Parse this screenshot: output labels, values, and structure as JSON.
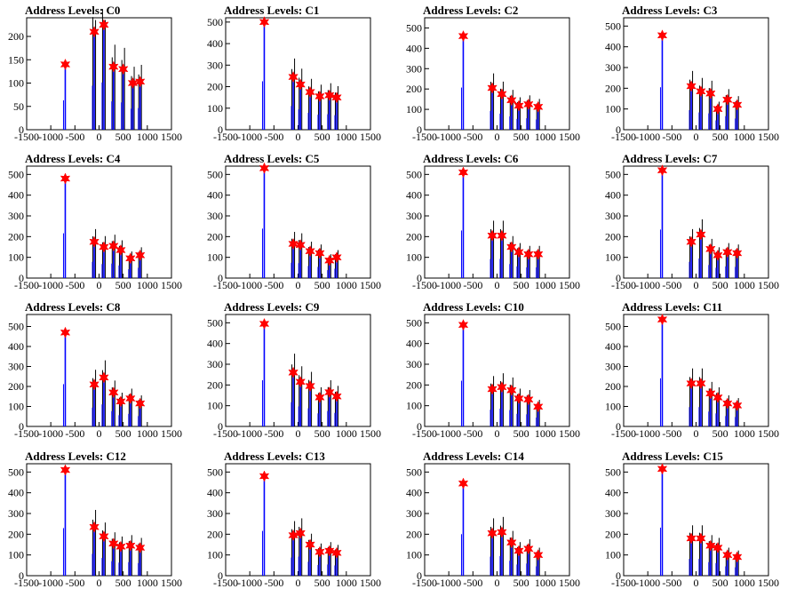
{
  "figure": {
    "title_prefix": "Address Levels: "
  },
  "colors": {
    "histogram": "#0000ff",
    "background_spike": "#000000",
    "peak_marker": "#ff0000",
    "axis": "#000000"
  },
  "chart_data": [
    {
      "type": "bar",
      "title": "Address Levels: C0",
      "xlim": [
        -1500,
        1500
      ],
      "ylim": [
        0,
        240
      ],
      "yticks": [
        0,
        50,
        100,
        150,
        200
      ],
      "xticks": [
        -1500,
        -1000,
        -500,
        0,
        500,
        1000,
        1500
      ],
      "peaks": [
        {
          "x": -700,
          "y": 140
        },
        {
          "x": -100,
          "y": 210
        },
        {
          "x": 100,
          "y": 225
        },
        {
          "x": 300,
          "y": 135
        },
        {
          "x": 500,
          "y": 130
        },
        {
          "x": 700,
          "y": 100
        },
        {
          "x": 850,
          "y": 103
        }
      ]
    },
    {
      "type": "bar",
      "title": "Address Levels: C1",
      "xlim": [
        -1500,
        1500
      ],
      "ylim": [
        0,
        520
      ],
      "yticks": [
        0,
        100,
        200,
        300,
        400,
        500
      ],
      "xticks": [
        -1500,
        -1000,
        -500,
        0,
        500,
        1000,
        1500
      ],
      "peaks": [
        {
          "x": -700,
          "y": 500
        },
        {
          "x": -100,
          "y": 245
        },
        {
          "x": 50,
          "y": 210
        },
        {
          "x": 250,
          "y": 175
        },
        {
          "x": 450,
          "y": 155
        },
        {
          "x": 650,
          "y": 160
        },
        {
          "x": 800,
          "y": 150
        }
      ]
    },
    {
      "type": "bar",
      "title": "Address Levels: C2",
      "xlim": [
        -1500,
        1500
      ],
      "ylim": [
        0,
        550
      ],
      "yticks": [
        0,
        100,
        200,
        300,
        400,
        500
      ],
      "xticks": [
        -1500,
        -1000,
        -500,
        0,
        500,
        1000,
        1500
      ],
      "peaks": [
        {
          "x": -700,
          "y": 460
        },
        {
          "x": -100,
          "y": 205
        },
        {
          "x": 100,
          "y": 175
        },
        {
          "x": 300,
          "y": 145
        },
        {
          "x": 450,
          "y": 118
        },
        {
          "x": 650,
          "y": 125
        },
        {
          "x": 850,
          "y": 112
        }
      ]
    },
    {
      "type": "bar",
      "title": "Address Levels: C3",
      "xlim": [
        -1500,
        1500
      ],
      "ylim": [
        0,
        540
      ],
      "yticks": [
        0,
        100,
        200,
        300,
        400,
        500
      ],
      "xticks": [
        -1500,
        -1000,
        -500,
        0,
        500,
        1000,
        1500
      ],
      "peaks": [
        {
          "x": -700,
          "y": 455
        },
        {
          "x": -100,
          "y": 210
        },
        {
          "x": 100,
          "y": 185
        },
        {
          "x": 300,
          "y": 175
        },
        {
          "x": 450,
          "y": 100
        },
        {
          "x": 650,
          "y": 145
        },
        {
          "x": 850,
          "y": 120
        }
      ]
    },
    {
      "type": "bar",
      "title": "Address Levels: C4",
      "xlim": [
        -1500,
        1500
      ],
      "ylim": [
        0,
        540
      ],
      "yticks": [
        0,
        100,
        200,
        300,
        400,
        500
      ],
      "xticks": [
        -1500,
        -1000,
        -500,
        0,
        500,
        1000,
        1500
      ],
      "peaks": [
        {
          "x": -700,
          "y": 480
        },
        {
          "x": -100,
          "y": 175
        },
        {
          "x": 100,
          "y": 150
        },
        {
          "x": 300,
          "y": 155
        },
        {
          "x": 450,
          "y": 135
        },
        {
          "x": 650,
          "y": 95
        },
        {
          "x": 850,
          "y": 110
        }
      ]
    },
    {
      "type": "bar",
      "title": "Address Levels: C5",
      "xlim": [
        -1500,
        1500
      ],
      "ylim": [
        0,
        540
      ],
      "yticks": [
        0,
        100,
        200,
        300,
        400,
        500
      ],
      "xticks": [
        -1500,
        -1000,
        -500,
        0,
        500,
        1000,
        1500
      ],
      "peaks": [
        {
          "x": -700,
          "y": 530
        },
        {
          "x": -100,
          "y": 165
        },
        {
          "x": 50,
          "y": 160
        },
        {
          "x": 250,
          "y": 130
        },
        {
          "x": 450,
          "y": 120
        },
        {
          "x": 650,
          "y": 85
        },
        {
          "x": 800,
          "y": 100
        }
      ]
    },
    {
      "type": "bar",
      "title": "Address Levels: C6",
      "xlim": [
        -1500,
        1500
      ],
      "ylim": [
        0,
        540
      ],
      "yticks": [
        0,
        100,
        200,
        300,
        400,
        500
      ],
      "xticks": [
        -1500,
        -1000,
        -500,
        0,
        500,
        1000,
        1500
      ],
      "peaks": [
        {
          "x": -700,
          "y": 510
        },
        {
          "x": -100,
          "y": 205
        },
        {
          "x": 100,
          "y": 205
        },
        {
          "x": 300,
          "y": 150
        },
        {
          "x": 450,
          "y": 125
        },
        {
          "x": 650,
          "y": 115
        },
        {
          "x": 850,
          "y": 115
        }
      ]
    },
    {
      "type": "bar",
      "title": "Address Levels: C7",
      "xlim": [
        -1500,
        1500
      ],
      "ylim": [
        0,
        540
      ],
      "yticks": [
        0,
        100,
        200,
        300,
        400,
        500
      ],
      "xticks": [
        -1500,
        -1000,
        -500,
        0,
        500,
        1000,
        1500
      ],
      "peaks": [
        {
          "x": -700,
          "y": 520
        },
        {
          "x": -100,
          "y": 175
        },
        {
          "x": 100,
          "y": 210
        },
        {
          "x": 300,
          "y": 140
        },
        {
          "x": 450,
          "y": 110
        },
        {
          "x": 650,
          "y": 125
        },
        {
          "x": 850,
          "y": 120
        }
      ]
    },
    {
      "type": "bar",
      "title": "Address Levels: C8",
      "xlim": [
        -1500,
        1500
      ],
      "ylim": [
        0,
        560
      ],
      "yticks": [
        0,
        100,
        200,
        300,
        400,
        500
      ],
      "xticks": [
        -1500,
        -1000,
        -500,
        0,
        500,
        1000,
        1500
      ],
      "peaks": [
        {
          "x": -700,
          "y": 470
        },
        {
          "x": -100,
          "y": 210
        },
        {
          "x": 100,
          "y": 245
        },
        {
          "x": 300,
          "y": 170
        },
        {
          "x": 450,
          "y": 125
        },
        {
          "x": 650,
          "y": 140
        },
        {
          "x": 850,
          "y": 115
        }
      ]
    },
    {
      "type": "bar",
      "title": "Address Levels: C9",
      "xlim": [
        -1500,
        1500
      ],
      "ylim": [
        0,
        540
      ],
      "yticks": [
        0,
        100,
        200,
        300,
        400,
        500
      ],
      "xticks": [
        -1500,
        -1000,
        -500,
        0,
        500,
        1000,
        1500
      ],
      "peaks": [
        {
          "x": -700,
          "y": 495
        },
        {
          "x": -100,
          "y": 260
        },
        {
          "x": 50,
          "y": 215
        },
        {
          "x": 250,
          "y": 195
        },
        {
          "x": 450,
          "y": 140
        },
        {
          "x": 650,
          "y": 165
        },
        {
          "x": 800,
          "y": 145
        }
      ]
    },
    {
      "type": "bar",
      "title": "Address Levels: C10",
      "xlim": [
        -1500,
        1500
      ],
      "ylim": [
        0,
        540
      ],
      "yticks": [
        0,
        100,
        200,
        300,
        400,
        500
      ],
      "xticks": [
        -1500,
        -1000,
        -500,
        0,
        500,
        1000,
        1500
      ],
      "peaks": [
        {
          "x": -700,
          "y": 490
        },
        {
          "x": -100,
          "y": 180
        },
        {
          "x": 100,
          "y": 190
        },
        {
          "x": 300,
          "y": 175
        },
        {
          "x": 450,
          "y": 135
        },
        {
          "x": 650,
          "y": 130
        },
        {
          "x": 850,
          "y": 95
        }
      ]
    },
    {
      "type": "bar",
      "title": "Address Levels: C11",
      "xlim": [
        -1500,
        1500
      ],
      "ylim": [
        0,
        560
      ],
      "yticks": [
        0,
        100,
        200,
        300,
        400,
        500
      ],
      "xticks": [
        -1500,
        -1000,
        -500,
        0,
        500,
        1000,
        1500
      ],
      "peaks": [
        {
          "x": -700,
          "y": 535
        },
        {
          "x": -100,
          "y": 215
        },
        {
          "x": 100,
          "y": 215
        },
        {
          "x": 300,
          "y": 165
        },
        {
          "x": 450,
          "y": 145
        },
        {
          "x": 650,
          "y": 115
        },
        {
          "x": 850,
          "y": 105
        }
      ]
    },
    {
      "type": "bar",
      "title": "Address Levels: C12",
      "xlim": [
        -1500,
        1500
      ],
      "ylim": [
        0,
        540
      ],
      "yticks": [
        0,
        100,
        200,
        300,
        400,
        500
      ],
      "xticks": [
        -1500,
        -1000,
        -500,
        0,
        500,
        1000,
        1500
      ],
      "peaks": [
        {
          "x": -700,
          "y": 510
        },
        {
          "x": -100,
          "y": 235
        },
        {
          "x": 100,
          "y": 190
        },
        {
          "x": 300,
          "y": 155
        },
        {
          "x": 450,
          "y": 140
        },
        {
          "x": 650,
          "y": 145
        },
        {
          "x": 850,
          "y": 135
        }
      ]
    },
    {
      "type": "bar",
      "title": "Address Levels: C13",
      "xlim": [
        -1500,
        1500
      ],
      "ylim": [
        0,
        540
      ],
      "yticks": [
        0,
        100,
        200,
        300,
        400,
        500
      ],
      "xticks": [
        -1500,
        -1000,
        -500,
        0,
        500,
        1000,
        1500
      ],
      "peaks": [
        {
          "x": -700,
          "y": 480
        },
        {
          "x": -100,
          "y": 195
        },
        {
          "x": 50,
          "y": 205
        },
        {
          "x": 250,
          "y": 150
        },
        {
          "x": 450,
          "y": 115
        },
        {
          "x": 650,
          "y": 120
        },
        {
          "x": 800,
          "y": 110
        }
      ]
    },
    {
      "type": "bar",
      "title": "Address Levels: C14",
      "xlim": [
        -1500,
        1500
      ],
      "ylim": [
        0,
        540
      ],
      "yticks": [
        0,
        100,
        200,
        300,
        400,
        500
      ],
      "xticks": [
        -1500,
        -1000,
        -500,
        0,
        500,
        1000,
        1500
      ],
      "peaks": [
        {
          "x": -700,
          "y": 445
        },
        {
          "x": -100,
          "y": 205
        },
        {
          "x": 100,
          "y": 210
        },
        {
          "x": 300,
          "y": 160
        },
        {
          "x": 450,
          "y": 120
        },
        {
          "x": 650,
          "y": 130
        },
        {
          "x": 850,
          "y": 100
        }
      ]
    },
    {
      "type": "bar",
      "title": "Address Levels: C15",
      "xlim": [
        -1500,
        1500
      ],
      "ylim": [
        0,
        540
      ],
      "yticks": [
        0,
        100,
        200,
        300,
        400,
        500
      ],
      "xticks": [
        -1500,
        -1000,
        -500,
        0,
        500,
        1000,
        1500
      ],
      "peaks": [
        {
          "x": -700,
          "y": 515
        },
        {
          "x": -100,
          "y": 180
        },
        {
          "x": 100,
          "y": 180
        },
        {
          "x": 300,
          "y": 145
        },
        {
          "x": 450,
          "y": 135
        },
        {
          "x": 650,
          "y": 100
        },
        {
          "x": 850,
          "y": 90
        }
      ]
    }
  ]
}
